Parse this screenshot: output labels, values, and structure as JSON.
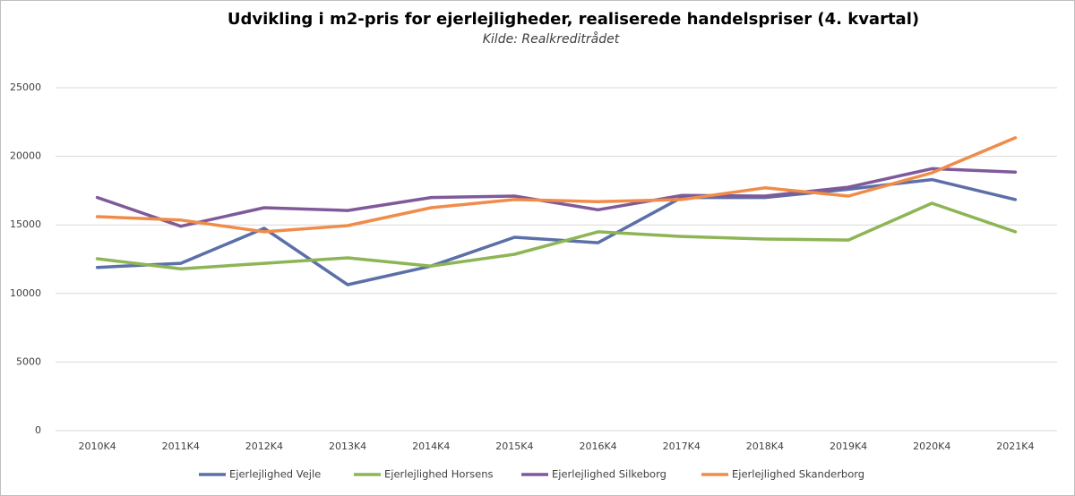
{
  "chart_data": {
    "type": "line",
    "title": "Udvikling i m2-pris for ejerlejligheder, realiserede handelspriser (4. kvartal)",
    "subtitle": "Kilde: Realkreditrådet",
    "categories": [
      "2010K4",
      "2011K4",
      "2012K4",
      "2013K4",
      "2014K4",
      "2015K4",
      "2016K4",
      "2017K4",
      "2018K4",
      "2019K4",
      "2020K4",
      "2021K4"
    ],
    "series": [
      {
        "name": "Ejerlejlighed Vejle",
        "color": "#5b6fa8",
        "values": [
          11900,
          12200,
          14750,
          10640,
          12000,
          14100,
          13700,
          17000,
          17000,
          17600,
          18300,
          16850
        ]
      },
      {
        "name": "Ejerlejlighed Horsens",
        "color": "#8db555",
        "values": [
          12530,
          11800,
          12200,
          12600,
          12000,
          12860,
          14500,
          14160,
          13970,
          13900,
          16580,
          14500
        ]
      },
      {
        "name": "Ejerlejlighed Silkeborg",
        "color": "#7f5a9a",
        "values": [
          17000,
          14900,
          16250,
          16050,
          17000,
          17100,
          16100,
          17150,
          17100,
          17750,
          19100,
          18850
        ]
      },
      {
        "name": "Ejerlejlighed Skanderborg",
        "color": "#f08c4a",
        "values": [
          15600,
          15350,
          14500,
          14950,
          16250,
          16850,
          16700,
          16850,
          17700,
          17100,
          18800,
          21350
        ]
      }
    ],
    "ylim": [
      0,
      25000
    ],
    "yticks": [
      0,
      5000,
      10000,
      15000,
      20000,
      25000
    ],
    "grid": true,
    "legend": "bottom"
  }
}
